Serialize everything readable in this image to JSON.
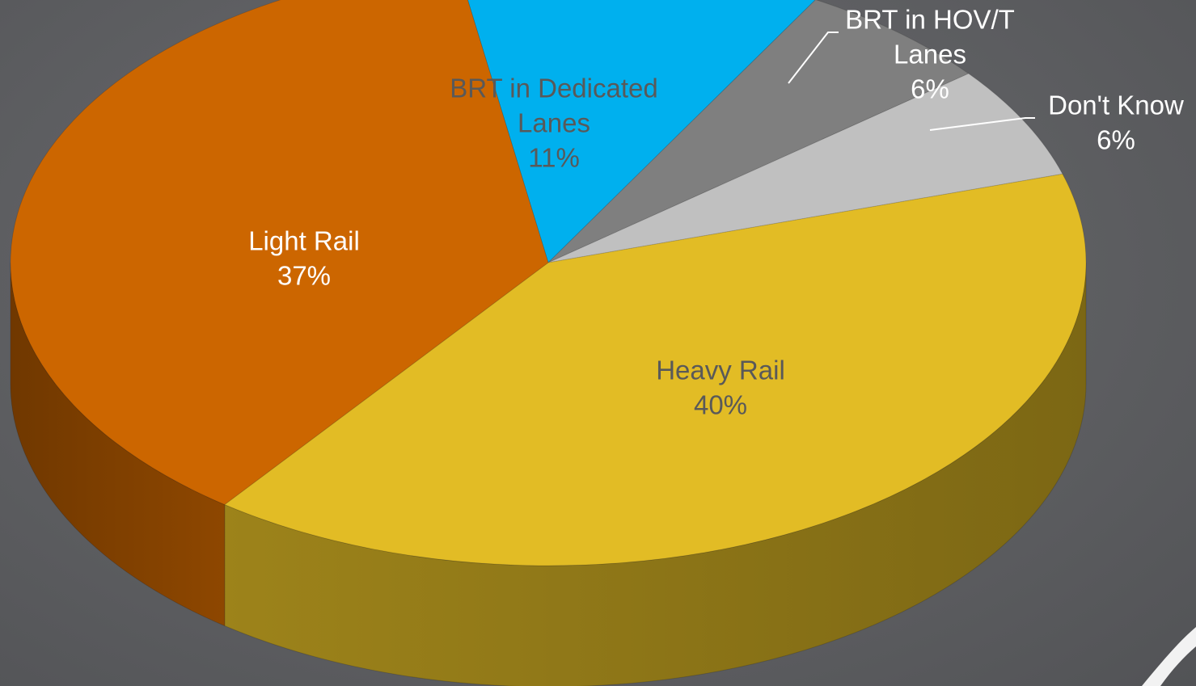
{
  "chart_data": {
    "type": "pie",
    "title": "",
    "series": [
      {
        "name": "",
        "slices": [
          {
            "label_lines": [
              "BRT in Dedicated",
              "Lanes"
            ],
            "percent_label": "11%",
            "value": 11,
            "color": "#00b0ee",
            "label_color": "#595959"
          },
          {
            "label_lines": [
              "BRT in HOV/T",
              "Lanes"
            ],
            "percent_label": "6%",
            "value": 6,
            "color": "#7f7f7f",
            "label_color": "#ffffff"
          },
          {
            "label_lines": [
              "Don't Know"
            ],
            "percent_label": "6%",
            "value": 6,
            "color": "#c0c0c0",
            "label_color": "#ffffff"
          },
          {
            "label_lines": [
              "Heavy Rail"
            ],
            "percent_label": "40%",
            "value": 40,
            "color": "#e2bc25",
            "label_color": "#595959"
          },
          {
            "label_lines": [
              "Light Rail"
            ],
            "percent_label": "37%",
            "value": 37,
            "color": "#cc6600",
            "label_color": "#ffffff"
          }
        ]
      }
    ],
    "style": "3d",
    "legend": "none"
  }
}
